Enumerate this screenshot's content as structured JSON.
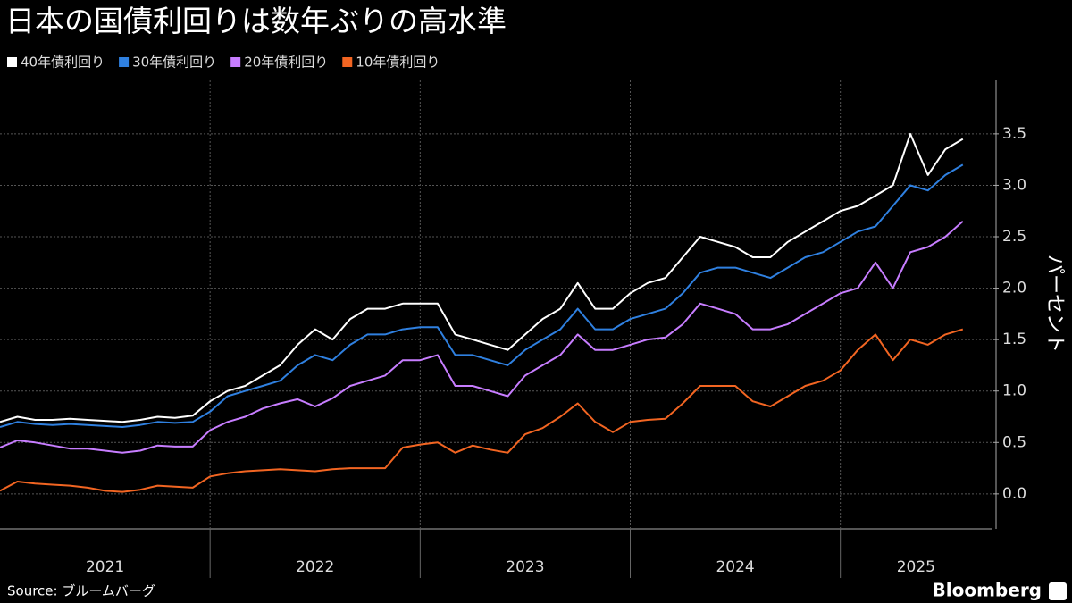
{
  "chart_data": {
    "type": "line",
    "title": "日本の国債利回りは数年ぶりの高水準",
    "y_label": "パーセント",
    "source": "Source: ブルームバーグ",
    "brand": "Bloomberg",
    "x": [
      2021,
      2021.083,
      2021.167,
      2021.25,
      2021.333,
      2021.417,
      2021.5,
      2021.583,
      2021.667,
      2021.75,
      2021.833,
      2021.917,
      2022,
      2022.083,
      2022.167,
      2022.25,
      2022.333,
      2022.417,
      2022.5,
      2022.583,
      2022.667,
      2022.75,
      2022.833,
      2022.917,
      2023,
      2023.083,
      2023.167,
      2023.25,
      2023.333,
      2023.417,
      2023.5,
      2023.583,
      2023.667,
      2023.75,
      2023.833,
      2023.917,
      2024,
      2024.083,
      2024.167,
      2024.25,
      2024.333,
      2024.417,
      2024.5,
      2024.583,
      2024.667,
      2024.75,
      2024.833,
      2024.917,
      2025,
      2025.083,
      2025.167,
      2025.25,
      2025.333,
      2025.417,
      2025.5,
      2025.583
    ],
    "series": [
      {
        "name": "40年債利回り",
        "color": "#ffffff",
        "values": [
          0.7,
          0.75,
          0.72,
          0.72,
          0.73,
          0.72,
          0.71,
          0.7,
          0.72,
          0.75,
          0.74,
          0.76,
          0.9,
          1.0,
          1.05,
          1.15,
          1.25,
          1.45,
          1.6,
          1.5,
          1.7,
          1.8,
          1.8,
          1.85,
          1.85,
          1.85,
          1.55,
          1.5,
          1.45,
          1.4,
          1.55,
          1.7,
          1.8,
          2.05,
          1.8,
          1.8,
          1.95,
          2.05,
          2.1,
          2.3,
          2.5,
          2.45,
          2.4,
          2.3,
          2.3,
          2.45,
          2.55,
          2.65,
          2.75,
          2.8,
          2.9,
          3.0,
          3.5,
          3.1,
          3.35,
          3.45
        ]
      },
      {
        "name": "30年債利回り",
        "color": "#2f80e0",
        "values": [
          0.65,
          0.7,
          0.68,
          0.67,
          0.68,
          0.67,
          0.66,
          0.65,
          0.67,
          0.7,
          0.69,
          0.7,
          0.8,
          0.95,
          1.0,
          1.05,
          1.1,
          1.25,
          1.35,
          1.3,
          1.45,
          1.55,
          1.55,
          1.6,
          1.62,
          1.62,
          1.35,
          1.35,
          1.3,
          1.25,
          1.4,
          1.5,
          1.6,
          1.8,
          1.6,
          1.6,
          1.7,
          1.75,
          1.8,
          1.95,
          2.15,
          2.2,
          2.2,
          2.15,
          2.1,
          2.2,
          2.3,
          2.35,
          2.45,
          2.55,
          2.6,
          2.8,
          3.0,
          2.95,
          3.1,
          3.2
        ]
      },
      {
        "name": "20年債利回り",
        "color": "#c77dff",
        "values": [
          0.45,
          0.52,
          0.5,
          0.47,
          0.44,
          0.44,
          0.42,
          0.4,
          0.42,
          0.47,
          0.46,
          0.46,
          0.62,
          0.7,
          0.75,
          0.83,
          0.88,
          0.92,
          0.85,
          0.93,
          1.05,
          1.1,
          1.15,
          1.3,
          1.3,
          1.35,
          1.05,
          1.05,
          1.0,
          0.95,
          1.15,
          1.25,
          1.35,
          1.55,
          1.4,
          1.4,
          1.45,
          1.5,
          1.52,
          1.65,
          1.85,
          1.8,
          1.75,
          1.6,
          1.6,
          1.65,
          1.75,
          1.85,
          1.95,
          2.0,
          2.25,
          2.0,
          2.35,
          2.4,
          2.5,
          2.65
        ]
      },
      {
        "name": "10年債利回り",
        "color": "#f26522",
        "values": [
          0.03,
          0.12,
          0.1,
          0.09,
          0.08,
          0.06,
          0.03,
          0.02,
          0.04,
          0.08,
          0.07,
          0.06,
          0.17,
          0.2,
          0.22,
          0.23,
          0.24,
          0.23,
          0.22,
          0.24,
          0.25,
          0.25,
          0.25,
          0.45,
          0.48,
          0.5,
          0.4,
          0.47,
          0.43,
          0.4,
          0.58,
          0.64,
          0.75,
          0.88,
          0.7,
          0.6,
          0.7,
          0.72,
          0.73,
          0.88,
          1.05,
          1.05,
          1.05,
          0.9,
          0.85,
          0.95,
          1.05,
          1.1,
          1.2,
          1.4,
          1.55,
          1.3,
          1.5,
          1.45,
          1.55,
          1.6
        ]
      }
    ],
    "xlim": [
      2021,
      2025.72
    ],
    "xticks": [
      {
        "value": 2021.5,
        "label": "2021"
      },
      {
        "value": 2022.5,
        "label": "2022"
      },
      {
        "value": 2023.5,
        "label": "2023"
      },
      {
        "value": 2024.5,
        "label": "2024"
      },
      {
        "value": 2025.36,
        "label": "2025"
      }
    ],
    "xgrid": [
      2022,
      2023,
      2024,
      2025
    ],
    "ylim": [
      -0.34,
      4.02
    ],
    "yticks": [
      {
        "value": 0,
        "label": "0.0"
      },
      0.5,
      {
        "value": 1,
        "label": "1.0"
      },
      1.5,
      {
        "value": 2,
        "label": "2.0"
      },
      2.5,
      {
        "value": 3,
        "label": "3.0"
      },
      3.5
    ],
    "grid": true,
    "legend": "top-left"
  }
}
